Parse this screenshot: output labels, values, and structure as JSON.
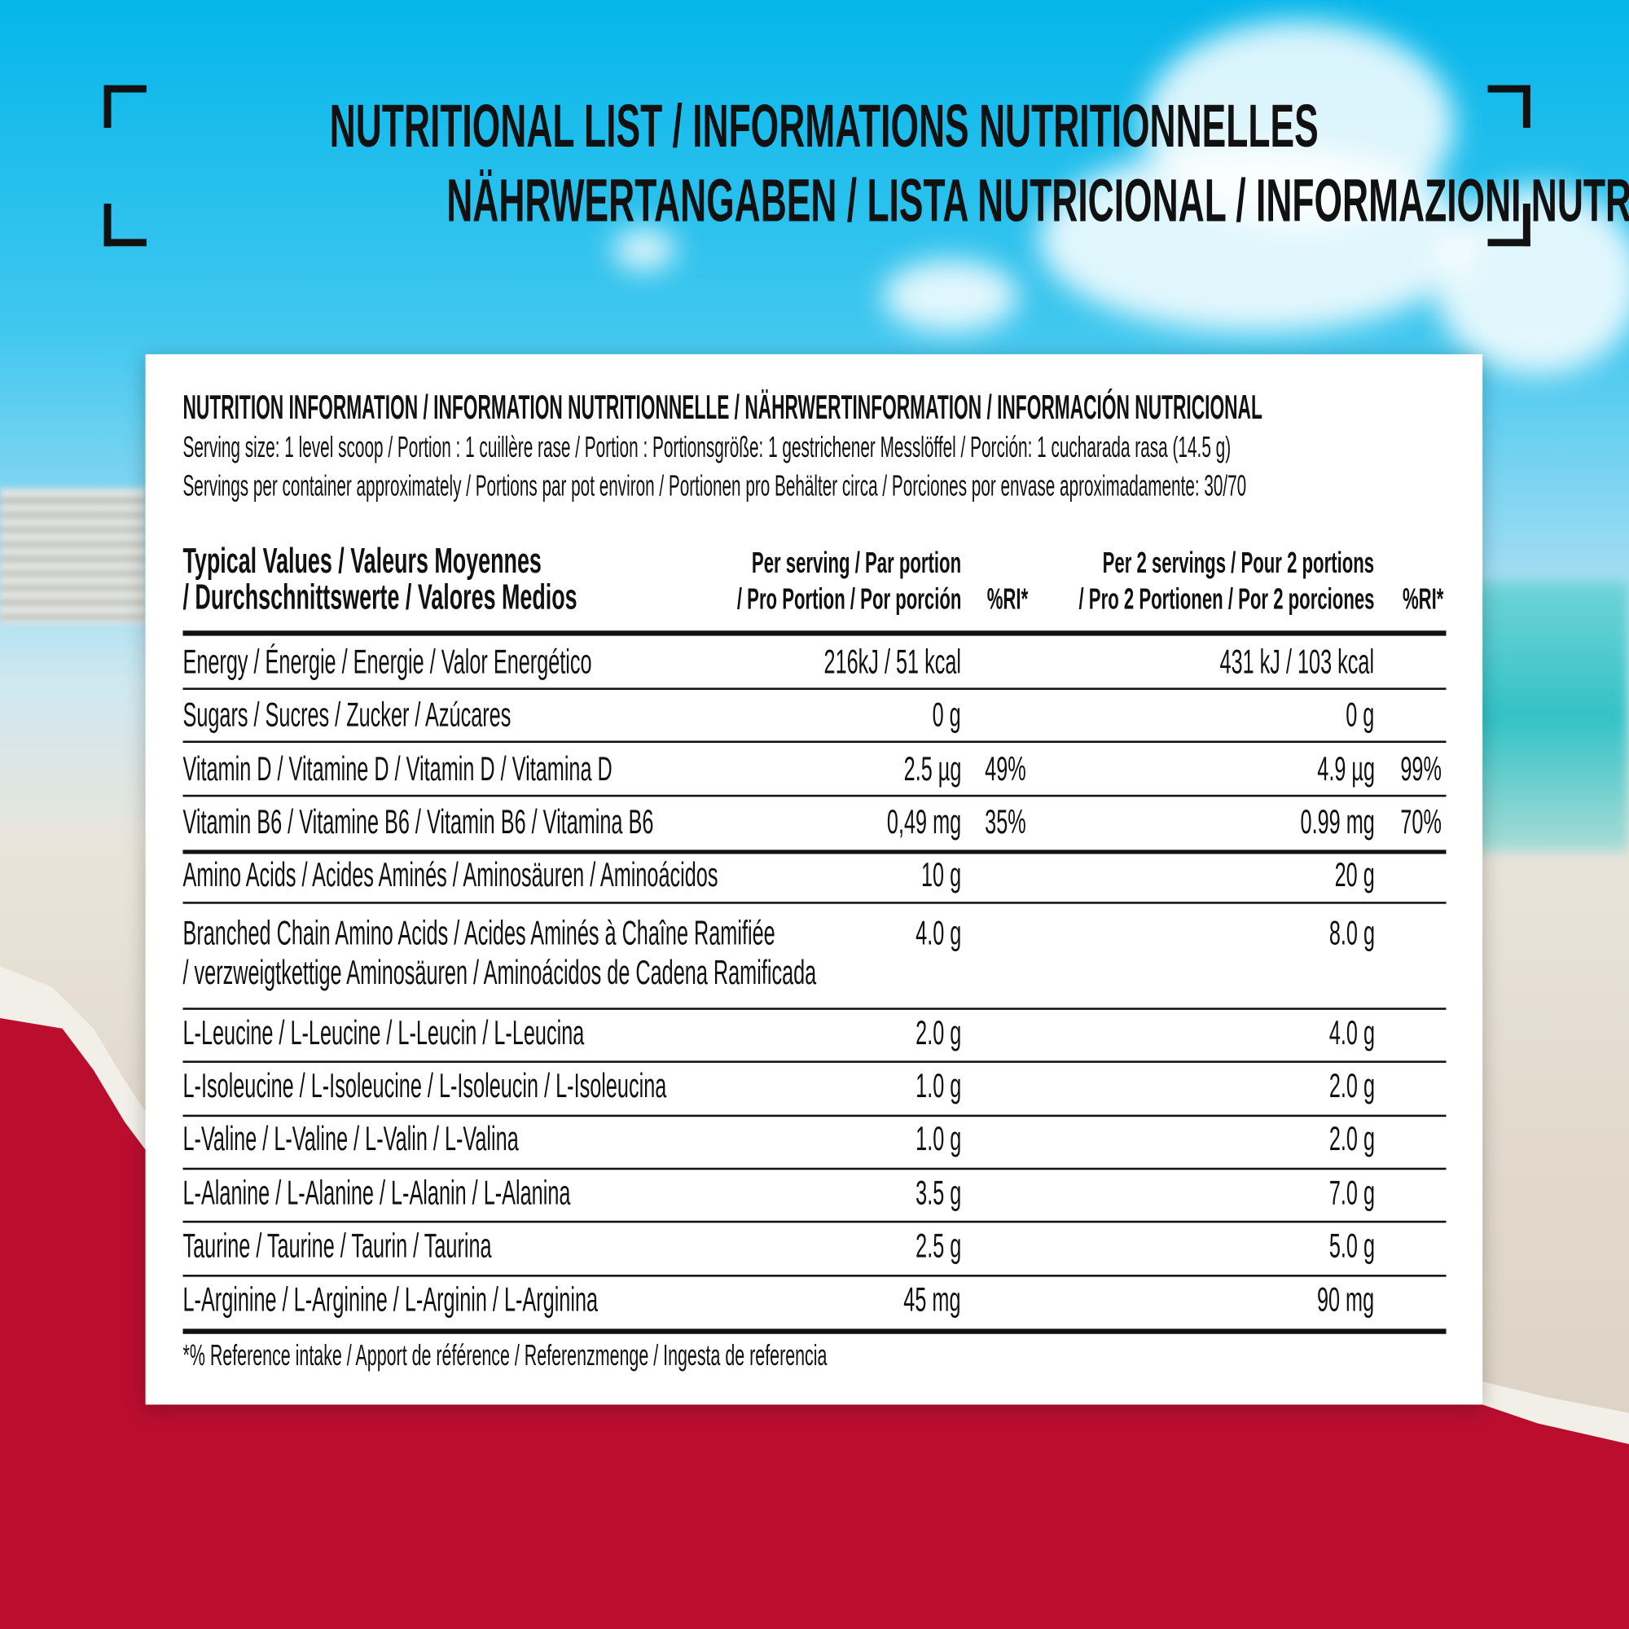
{
  "header": {
    "line1": "NUTRITIONAL LIST / INFORMATIONS NUTRITIONNELLES",
    "line2": "NÄHRWERTANGABEN / LISTA NUTRICIONAL / INFORMAZIONI NUTRIZIONALI"
  },
  "card": {
    "title": "NUTRITION INFORMATION / INFORMATION NUTRITIONNELLE / NÄHRWERTINFORMATION / INFORMACIÓN NUTRICIONAL",
    "serving_size": "Serving size: 1 level scoop / Portion : 1 cuillère rase / Portion : Portionsgröße: 1 gestrichener Messlöffel / Porción: 1 cucharada rasa (14.5 g)",
    "servings_per_container": "Servings per container approximately / Portions par pot environ / Portionen pro Behälter circa / Porciones por envase aproximadamente: 30/70",
    "columns": {
      "label_1": "Typical Values / Valeurs Moyennes",
      "label_2": "/ Durchschnittswerte / Valores Medios",
      "per_serving_1": "Per serving / Par portion",
      "per_serving_2": "/ Pro Portion / Por porción",
      "ri": "%RI*",
      "per2_1": "Per 2 servings / Pour 2 portions",
      "per2_2": "/ Pro 2 Portionen / Por 2 porciones",
      "ri2": "%RI*"
    },
    "rows": [
      {
        "label": "Energy / Énergie / Energie / Valor Energético",
        "per": "216kJ / 51 kcal",
        "ri": "",
        "per2": "431 kJ / 103 kcal",
        "ri2": ""
      },
      {
        "label": "Sugars / Sucres / Zucker / Azúcares",
        "per": "0 g",
        "ri": "",
        "per2": "0 g",
        "ri2": ""
      },
      {
        "label": "Vitamin D / Vitamine D / Vitamin D / Vitamina D",
        "per": "2.5 µg",
        "ri": "49%",
        "per2": "4.9 µg",
        "ri2": "99%"
      },
      {
        "label": "Vitamin B6 / Vitamine B6 / Vitamin B6 / Vitamina B6",
        "per": "0,49 mg",
        "ri": "35%",
        "per2": "0.99 mg",
        "ri2": "70%"
      },
      {
        "label": "Amino Acids / Acides Aminés / Aminosäuren / Aminoácidos",
        "per": "10 g",
        "ri": "",
        "per2": "20 g",
        "ri2": ""
      },
      {
        "label": "Branched Chain Amino Acids / Acides Aminés à Chaîne Ramifiée",
        "label2": "/ verzweigtkettige Aminosäuren / Aminoácidos de Cadena Ramificada",
        "per": "4.0 g",
        "ri": "",
        "per2": "8.0 g",
        "ri2": ""
      },
      {
        "label": "L-Leucine / L-Leucine / L-Leucin / L-Leucina",
        "per": "2.0 g",
        "ri": "",
        "per2": "4.0 g",
        "ri2": ""
      },
      {
        "label": "L-Isoleucine / L-Isoleucine / L-Isoleucin / L-Isoleucina",
        "per": "1.0 g",
        "ri": "",
        "per2": "2.0 g",
        "ri2": ""
      },
      {
        "label": "L-Valine / L-Valine / L-Valin / L-Valina",
        "per": "1.0 g",
        "ri": "",
        "per2": "2.0 g",
        "ri2": ""
      },
      {
        "label": "L-Alanine / L-Alanine / L-Alanin / L-Alanina",
        "per": "3.5 g",
        "ri": "",
        "per2": "7.0 g",
        "ri2": ""
      },
      {
        "label": "Taurine / Taurine / Taurin / Taurina",
        "per": "2.5 g",
        "ri": "",
        "per2": "5.0 g",
        "ri2": ""
      },
      {
        "label": "L-Arginine / L-Arginine / L-Arginin / L-Arginina",
        "per": "45 mg",
        "ri": "",
        "per2": "90 mg",
        "ri2": ""
      }
    ],
    "footnote": "*% Reference intake / Apport de référence  / Referenzmenge / Ingesta de referencia"
  },
  "colors": {
    "red": "#bb0e2f",
    "sky": "#05b6ea"
  }
}
